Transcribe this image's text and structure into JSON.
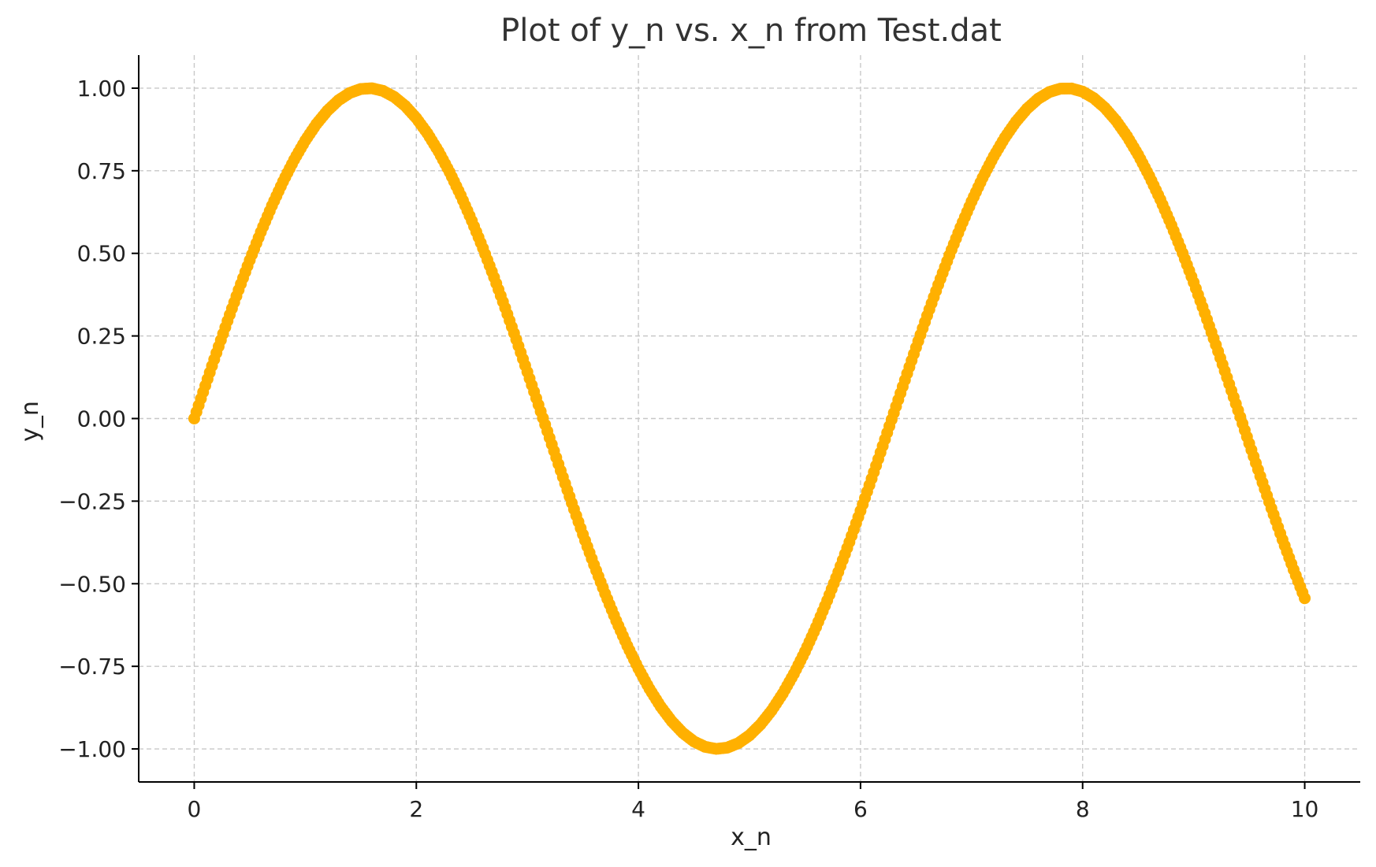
{
  "chart_data": {
    "type": "scatter",
    "title": "Plot of y_n vs. x_n from Test.dat",
    "xlabel": "x_n",
    "ylabel": "y_n",
    "xlim": [
      -0.5,
      10.5
    ],
    "ylim": [
      -1.1,
      1.1
    ],
    "xticks": [
      0,
      2,
      4,
      6,
      8,
      10
    ],
    "xtick_labels": [
      "0",
      "2",
      "4",
      "6",
      "8",
      "10"
    ],
    "yticks": [
      1.0,
      0.75,
      0.5,
      0.25,
      0.0,
      -0.25,
      -0.5,
      -0.75,
      -1.0
    ],
    "ytick_labels": [
      "1.00",
      "0.75",
      "0.50",
      "0.25",
      "0.00",
      "−0.25",
      "−0.50",
      "−0.75",
      "−1.00"
    ],
    "grid": true,
    "marker_color": "#FFB000",
    "series": [
      {
        "x": [
          0.0,
          0.1,
          0.2,
          0.3,
          0.4,
          0.5,
          0.6,
          0.7,
          0.8,
          0.9,
          1.0,
          1.1,
          1.2,
          1.3,
          1.4,
          1.5,
          1.6,
          1.7,
          1.8,
          1.9,
          2.0,
          2.1,
          2.2,
          2.3,
          2.4,
          2.5,
          2.6,
          2.7,
          2.8,
          2.9,
          3.0,
          3.1,
          3.2,
          3.3,
          3.4,
          3.5,
          3.6,
          3.7,
          3.8,
          3.9,
          4.0,
          4.1,
          4.2,
          4.3,
          4.4,
          4.5,
          4.6,
          4.7,
          4.8,
          4.9,
          5.0,
          5.1,
          5.2,
          5.3,
          5.4,
          5.5,
          5.6,
          5.7,
          5.8,
          5.9,
          6.0,
          6.1,
          6.2,
          6.3,
          6.4,
          6.5,
          6.6,
          6.7,
          6.8,
          6.9,
          7.0,
          7.1,
          7.2,
          7.3,
          7.4,
          7.5,
          7.6,
          7.7,
          7.8,
          7.9,
          8.0,
          8.1,
          8.2,
          8.3,
          8.4,
          8.5,
          8.6,
          8.7,
          8.8,
          8.9,
          9.0,
          9.1,
          9.2,
          9.3,
          9.4,
          9.5,
          9.6,
          9.7,
          9.8,
          9.9,
          10.0
        ],
        "y": [
          0.0,
          0.0998,
          0.1987,
          0.2955,
          0.3894,
          0.4794,
          0.5646,
          0.6442,
          0.7174,
          0.7833,
          0.8415,
          0.8912,
          0.932,
          0.9636,
          0.9854,
          0.9975,
          0.9996,
          0.9917,
          0.9738,
          0.9463,
          0.9093,
          0.8632,
          0.8085,
          0.7457,
          0.6755,
          0.5985,
          0.5155,
          0.4274,
          0.335,
          0.2392,
          0.1411,
          0.0416,
          -0.0584,
          -0.1577,
          -0.2555,
          -0.3508,
          -0.4425,
          -0.5298,
          -0.6119,
          -0.6878,
          -0.7568,
          -0.8183,
          -0.8716,
          -0.9162,
          -0.9516,
          -0.9775,
          -0.9937,
          -0.9999,
          -0.9962,
          -0.9825,
          -0.9589,
          -0.9258,
          -0.8835,
          -0.8323,
          -0.7728,
          -0.7055,
          -0.6313,
          -0.5507,
          -0.4646,
          -0.3739,
          -0.2794,
          -0.1822,
          -0.0831,
          0.0168,
          0.1165,
          0.2151,
          0.3115,
          0.4048,
          0.4941,
          0.5784,
          0.657,
          0.729,
          0.7937,
          0.8504,
          0.8987,
          0.938,
          0.9679,
          0.9882,
          0.9985,
          0.9989,
          0.9894,
          0.9699,
          0.9407,
          0.9022,
          0.8546,
          0.7985,
          0.7344,
          0.663,
          0.585,
          0.501,
          0.4121,
          0.319,
          0.2229,
          0.1245,
          0.0248,
          -0.0752,
          -0.1743,
          -0.2718,
          -0.3665,
          -0.4575,
          -0.544
        ]
      }
    ]
  }
}
